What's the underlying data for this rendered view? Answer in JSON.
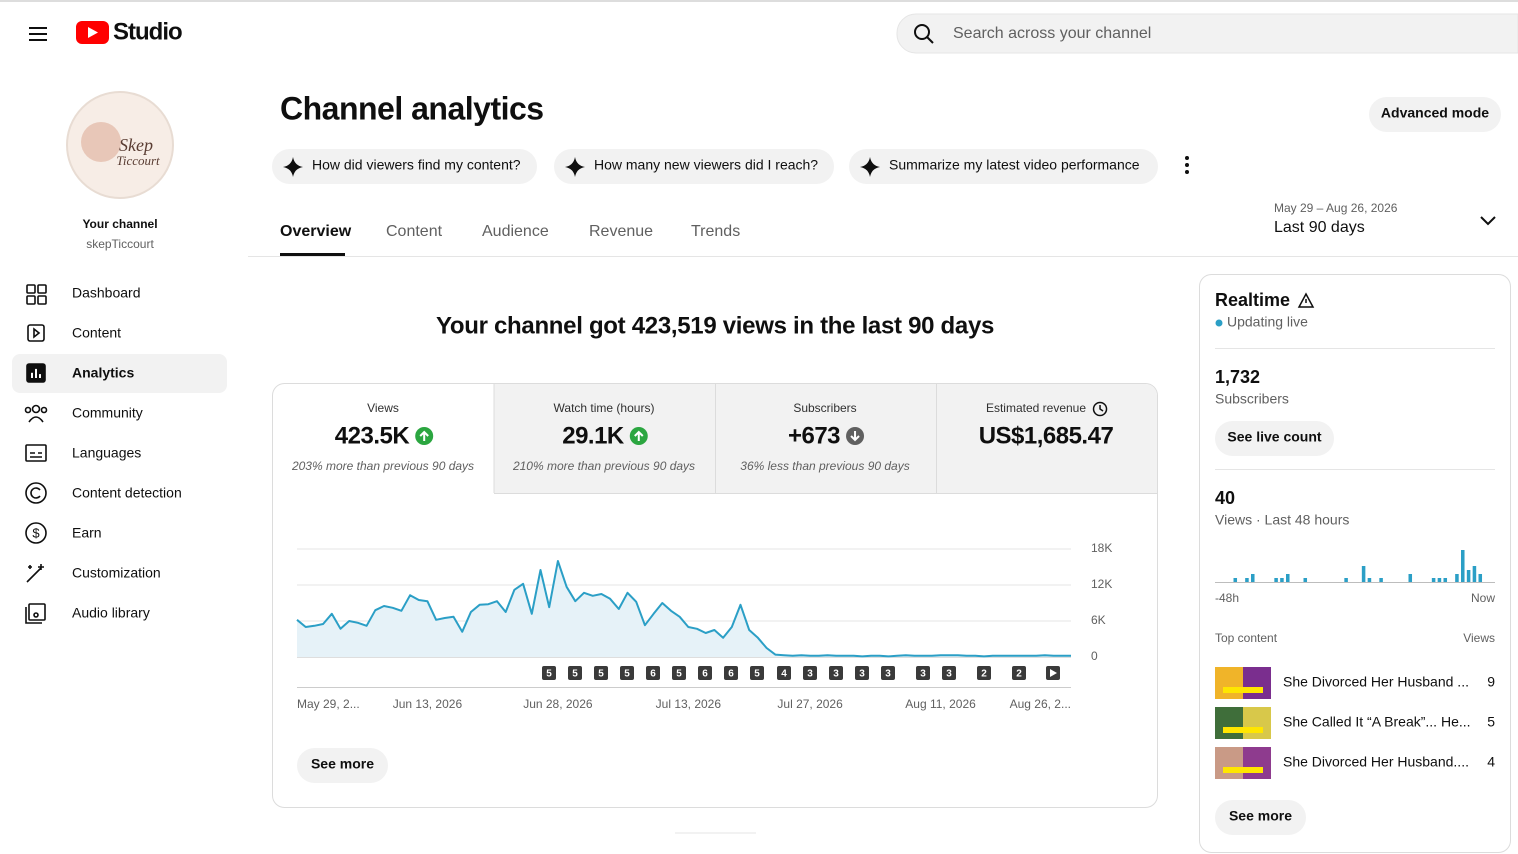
{
  "header": {
    "logo_text": "Studio",
    "search_placeholder": "Search across your channel"
  },
  "sidebar": {
    "avatar_text": [
      "Skep",
      "Ticcourt"
    ],
    "channel_label": "Your channel",
    "channel_handle": "skepTiccourt",
    "nav": [
      "Dashboard",
      "Content",
      "Analytics",
      "Community",
      "Languages",
      "Content detection",
      "Earn",
      "Customization",
      "Audio library"
    ]
  },
  "page": {
    "title": "Channel analytics",
    "advanced_mode": "Advanced mode",
    "suggestions": [
      "How did viewers find my content?",
      "How many new viewers did I reach?",
      "Summarize my latest video performance"
    ],
    "tabs": [
      "Overview",
      "Content",
      "Audience",
      "Revenue",
      "Trends"
    ],
    "date_range": {
      "dates": "May 29 – Aug 26, 2026",
      "label": "Last 90 days"
    },
    "headline": "Your channel got 423,519 views in the last 90 days",
    "metrics": [
      {
        "label": "Views",
        "value": "423.5K",
        "icon": "up",
        "note": "203% more than previous 90 days"
      },
      {
        "label": "Watch time (hours)",
        "value": "29.1K",
        "icon": "up",
        "note": "210% more than previous 90 days"
      },
      {
        "label": "Subscribers",
        "value": "+673",
        "icon": "down",
        "note": "36% less than previous 90 days"
      },
      {
        "label": "Estimated revenue",
        "value": "US$1,685.47",
        "icon": "clock"
      }
    ],
    "see_more": "See more"
  },
  "realtime": {
    "title": "Realtime",
    "status": "Updating live",
    "subscribers": "1,732",
    "subscribers_label": "Subscribers",
    "live_count_button": "See live count",
    "views": 40,
    "views_label": "Views · Last 48 hours",
    "top_content_label": "Top content",
    "top_content_views_label": "Views",
    "top_content": [
      {
        "title": "She Divorced Her Husband ...",
        "views": 9
      },
      {
        "title": "She Called It “A Break”... He...",
        "views": 5
      },
      {
        "title": "She Divorced Her Husband....",
        "views": 4
      }
    ],
    "see_more": "See more"
  },
  "chart_data": [
    {
      "type": "line",
      "color": "#2b9fc6",
      "grid": true,
      "categories": [
        "May 29, 2...",
        null,
        null,
        null,
        null,
        null,
        null,
        null,
        null,
        null,
        null,
        null,
        null,
        null,
        null,
        "Jun 13, 2026",
        null,
        null,
        null,
        null,
        null,
        null,
        null,
        null,
        null,
        null,
        null,
        null,
        null,
        null,
        "Jun 28, 2026",
        null,
        null,
        null,
        null,
        null,
        null,
        null,
        null,
        null,
        null,
        null,
        null,
        null,
        null,
        "Jul 13, 2026",
        null,
        null,
        null,
        null,
        null,
        null,
        null,
        null,
        null,
        null,
        null,
        null,
        null,
        "Jul 27, 2026",
        null,
        null,
        null,
        null,
        null,
        null,
        null,
        null,
        null,
        null,
        null,
        null,
        null,
        null,
        "Aug 11, 2026",
        null,
        null,
        null,
        null,
        null,
        null,
        null,
        null,
        null,
        null,
        null,
        null,
        null,
        null,
        "Aug 26, 2..."
      ],
      "values": [
        6200,
        5000,
        5200,
        5500,
        7200,
        4700,
        6000,
        5700,
        5200,
        7800,
        8500,
        8200,
        7700,
        10300,
        9500,
        9300,
        6200,
        6500,
        6700,
        4200,
        7500,
        8700,
        8800,
        9300,
        7500,
        11200,
        12200,
        7200,
        14500,
        8300,
        16000,
        11700,
        9300,
        10700,
        10200,
        10500,
        9700,
        8000,
        10700,
        9200,
        5300,
        7200,
        9000,
        7700,
        6700,
        5000,
        4700,
        4000,
        4500,
        3200,
        5000,
        8700,
        4500,
        3200,
        1500,
        400,
        300,
        200,
        300,
        200,
        200,
        300,
        200,
        200,
        200,
        100,
        200,
        200,
        100,
        200,
        300,
        200,
        200,
        200,
        300,
        300,
        300,
        200,
        200,
        100,
        200,
        200,
        200,
        200,
        200,
        200,
        300,
        200,
        200,
        200
      ],
      "ylim": [
        0,
        18000
      ],
      "yticks": [
        0,
        {
          "value": 6000,
          "label": "6K"
        },
        {
          "value": 12000,
          "label": "12K"
        },
        {
          "value": 18000,
          "label": "18K"
        }
      ],
      "annotations": [
        "5",
        "5",
        "5",
        "5",
        "6",
        "5",
        "6",
        "6",
        "5",
        "4",
        "3",
        "3",
        "3",
        "3",
        "3",
        "3",
        "2",
        "2"
      ]
    },
    {
      "type": "bar",
      "color": "#2b9fc6",
      "categories": [
        "-48h",
        null,
        null,
        null,
        null,
        null,
        null,
        null,
        null,
        null,
        null,
        null,
        null,
        null,
        null,
        null,
        null,
        null,
        null,
        null,
        null,
        null,
        null,
        null,
        null,
        null,
        null,
        null,
        null,
        null,
        null,
        null,
        null,
        null,
        null,
        null,
        null,
        null,
        null,
        null,
        null,
        null,
        null,
        null,
        null,
        null,
        null,
        "Now"
      ],
      "values": [
        0,
        0,
        0,
        1,
        0,
        1,
        2,
        0,
        0,
        0,
        1,
        1,
        2,
        0,
        0,
        1,
        0,
        0,
        0,
        0,
        0,
        0,
        1,
        0,
        0,
        4,
        1,
        0,
        1,
        0,
        0,
        0,
        0,
        2,
        0,
        0,
        0,
        1,
        1,
        1,
        0,
        2,
        8,
        3,
        4,
        2,
        0,
        0
      ]
    }
  ]
}
